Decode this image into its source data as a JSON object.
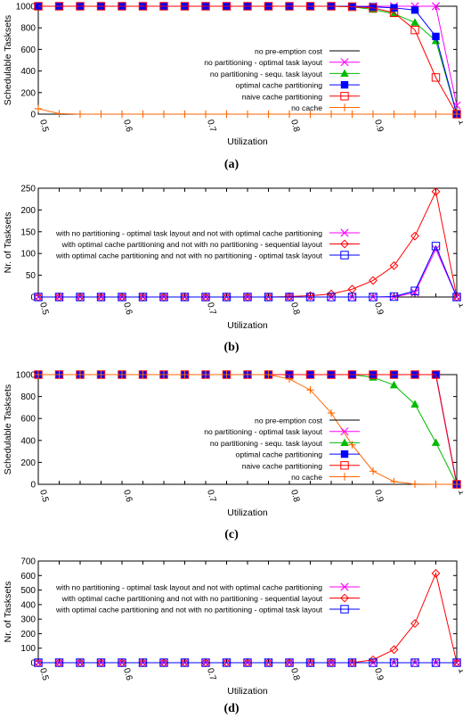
{
  "chart_data": [
    {
      "type": "line",
      "caption": "(a)",
      "xlabel": "Utilization",
      "ylabel": "Schedulable Tasksets",
      "xlim": [
        0.5,
        1.0
      ],
      "ylim": [
        0,
        1000
      ],
      "xticks": [
        "0.5",
        "0.6",
        "0.7",
        "0.8",
        "0.9",
        "1"
      ],
      "yticks": [
        "0",
        "200",
        "400",
        "600",
        "800",
        "1000"
      ],
      "grid": false,
      "legend": "center-right",
      "x": [
        0.5,
        0.525,
        0.55,
        0.575,
        0.6,
        0.625,
        0.65,
        0.675,
        0.7,
        0.725,
        0.75,
        0.775,
        0.8,
        0.825,
        0.85,
        0.875,
        0.9,
        0.925,
        0.95,
        0.975,
        1.0
      ],
      "series": [
        {
          "name": "no pre-emption cost",
          "color": "#000000",
          "marker": "none",
          "values": [
            1000,
            1000,
            1000,
            1000,
            1000,
            1000,
            1000,
            1000,
            1000,
            1000,
            1000,
            1000,
            1000,
            1000,
            1000,
            1000,
            1000,
            1000,
            1000,
            1000,
            1000
          ]
        },
        {
          "name": "no partitioning - optimal task layout",
          "color": "#ff00ff",
          "marker": "x",
          "values": [
            1000,
            1000,
            1000,
            1000,
            1000,
            1000,
            1000,
            1000,
            1000,
            1000,
            1000,
            1000,
            1000,
            1000,
            1000,
            1000,
            1000,
            1000,
            1000,
            1000,
            80
          ]
        },
        {
          "name": "no partitioning - sequ. task layout",
          "color": "#00bb00",
          "marker": "triangle",
          "values": [
            1000,
            1000,
            1000,
            1000,
            1000,
            1000,
            1000,
            1000,
            1000,
            1000,
            1000,
            1000,
            1000,
            1000,
            1000,
            995,
            970,
            930,
            850,
            680,
            0
          ]
        },
        {
          "name": "optimal cache partitioning",
          "color": "#0000ff",
          "marker": "square-filled",
          "values": [
            1000,
            1000,
            1000,
            1000,
            1000,
            1000,
            1000,
            1000,
            1000,
            1000,
            1000,
            1000,
            1000,
            1000,
            1000,
            1000,
            995,
            985,
            965,
            720,
            0
          ]
        },
        {
          "name": "naive cache partitioning",
          "color": "#ff0000",
          "marker": "square-open",
          "values": [
            1000,
            1000,
            1000,
            1000,
            1000,
            1000,
            1000,
            1000,
            1000,
            1000,
            1000,
            1000,
            1000,
            1000,
            1000,
            995,
            985,
            940,
            780,
            340,
            0
          ]
        },
        {
          "name": "no cache",
          "color": "#ff6600",
          "marker": "plus",
          "values": [
            50,
            5,
            0,
            0,
            0,
            0,
            0,
            0,
            0,
            0,
            0,
            0,
            0,
            0,
            0,
            0,
            0,
            0,
            0,
            0,
            0
          ]
        }
      ]
    },
    {
      "type": "line",
      "caption": "(b)",
      "xlabel": "Utilization",
      "ylabel": "Nr. of Tasksets",
      "xlim": [
        0.5,
        1.0
      ],
      "ylim": [
        0,
        250
      ],
      "xticks": [
        "0.5",
        "0.6",
        "0.7",
        "0.8",
        "0.9",
        "1"
      ],
      "yticks": [
        "0",
        "50",
        "100",
        "150",
        "200",
        "250"
      ],
      "grid": false,
      "legend": "center-right",
      "x": [
        0.5,
        0.525,
        0.55,
        0.575,
        0.6,
        0.625,
        0.65,
        0.675,
        0.7,
        0.725,
        0.75,
        0.775,
        0.8,
        0.825,
        0.85,
        0.875,
        0.9,
        0.925,
        0.95,
        0.975,
        1.0
      ],
      "series": [
        {
          "name": "with no partitioning - optimal task layout and not with optimal cache partitioning",
          "color": "#ff00ff",
          "marker": "x",
          "values": [
            0,
            0,
            0,
            0,
            0,
            0,
            0,
            0,
            0,
            0,
            0,
            0,
            0,
            0,
            0,
            0,
            0,
            0,
            10,
            110,
            0
          ]
        },
        {
          "name": "with optimal cache partitioning and not with no partitioning - sequential layout",
          "color": "#ff0000",
          "marker": "diamond",
          "values": [
            0,
            0,
            0,
            0,
            0,
            0,
            0,
            0,
            0,
            0,
            0,
            0,
            1,
            3,
            7,
            18,
            38,
            72,
            140,
            242,
            0
          ]
        },
        {
          "name": "with optimal cache partitioning and not with no partitioning - optimal task layout",
          "color": "#0000ff",
          "marker": "square-open",
          "values": [
            0,
            0,
            0,
            0,
            0,
            0,
            0,
            0,
            0,
            0,
            0,
            0,
            0,
            0,
            0,
            0,
            0,
            1,
            14,
            117,
            0
          ]
        }
      ]
    },
    {
      "type": "line",
      "caption": "(c)",
      "xlabel": "Utilization",
      "ylabel": "Schedulable Tasksets",
      "xlim": [
        0.5,
        1.0
      ],
      "ylim": [
        0,
        1000
      ],
      "xticks": [
        "0.5",
        "0.6",
        "0.7",
        "0.8",
        "0.9",
        "1"
      ],
      "yticks": [
        "0",
        "200",
        "400",
        "600",
        "800",
        "1000"
      ],
      "grid": false,
      "legend": "center-right",
      "x": [
        0.5,
        0.525,
        0.55,
        0.575,
        0.6,
        0.625,
        0.65,
        0.675,
        0.7,
        0.725,
        0.75,
        0.775,
        0.8,
        0.825,
        0.85,
        0.875,
        0.9,
        0.925,
        0.95,
        0.975,
        1.0
      ],
      "series": [
        {
          "name": "no pre-emption cost",
          "color": "#000000",
          "marker": "none",
          "values": [
            1000,
            1000,
            1000,
            1000,
            1000,
            1000,
            1000,
            1000,
            1000,
            1000,
            1000,
            1000,
            1000,
            1000,
            1000,
            1000,
            1000,
            1000,
            1000,
            1000,
            1000
          ]
        },
        {
          "name": "no partitioning - optimal task layout",
          "color": "#ff00ff",
          "marker": "x",
          "values": [
            1000,
            1000,
            1000,
            1000,
            1000,
            1000,
            1000,
            1000,
            1000,
            1000,
            1000,
            1000,
            1000,
            1000,
            1000,
            1000,
            1000,
            1000,
            1000,
            1000,
            0
          ]
        },
        {
          "name": "no partitioning - sequ. task layout",
          "color": "#00bb00",
          "marker": "triangle",
          "values": [
            1000,
            1000,
            1000,
            1000,
            1000,
            1000,
            1000,
            1000,
            1000,
            1000,
            1000,
            1000,
            1000,
            1000,
            1000,
            1000,
            975,
            905,
            730,
            380,
            0
          ]
        },
        {
          "name": "optimal cache partitioning",
          "color": "#0000ff",
          "marker": "square-filled",
          "values": [
            1000,
            1000,
            1000,
            1000,
            1000,
            1000,
            1000,
            1000,
            1000,
            1000,
            1000,
            1000,
            1000,
            1000,
            1000,
            1000,
            1000,
            1000,
            1000,
            1000,
            0
          ]
        },
        {
          "name": "naive cache partitioning",
          "color": "#ff0000",
          "marker": "square-open",
          "values": [
            1000,
            1000,
            1000,
            1000,
            1000,
            1000,
            1000,
            1000,
            1000,
            1000,
            1000,
            1000,
            1000,
            1000,
            1000,
            1000,
            1000,
            1000,
            1000,
            1000,
            0
          ]
        },
        {
          "name": "no cache",
          "color": "#ff6600",
          "marker": "plus",
          "values": [
            1000,
            1000,
            1000,
            1000,
            1000,
            1000,
            1000,
            1000,
            1000,
            1000,
            1000,
            1000,
            960,
            860,
            650,
            360,
            120,
            25,
            2,
            0,
            0
          ]
        }
      ]
    },
    {
      "type": "line",
      "caption": "(d)",
      "xlabel": "Utilization",
      "ylabel": "Nr. of Tasksets",
      "xlim": [
        0.5,
        1.0
      ],
      "ylim": [
        0,
        700
      ],
      "xticks": [
        "0.5",
        "0.6",
        "0.7",
        "0.8",
        "0.9",
        "1"
      ],
      "yticks": [
        "0",
        "100",
        "200",
        "300",
        "400",
        "500",
        "600",
        "700"
      ],
      "grid": false,
      "legend": "top-right",
      "x": [
        0.5,
        0.525,
        0.55,
        0.575,
        0.6,
        0.625,
        0.65,
        0.675,
        0.7,
        0.725,
        0.75,
        0.775,
        0.8,
        0.825,
        0.85,
        0.875,
        0.9,
        0.925,
        0.95,
        0.975,
        1.0
      ],
      "series": [
        {
          "name": "with no partitioning - optimal task layout and not with optimal cache partitioning",
          "color": "#ff00ff",
          "marker": "x",
          "values": [
            0,
            0,
            0,
            0,
            0,
            0,
            0,
            0,
            0,
            0,
            0,
            0,
            0,
            0,
            0,
            0,
            0,
            0,
            0,
            0,
            0
          ]
        },
        {
          "name": "with optimal cache partitioning and not with no partitioning - sequential layout",
          "color": "#ff0000",
          "marker": "diamond",
          "values": [
            0,
            0,
            0,
            0,
            0,
            0,
            0,
            0,
            0,
            0,
            0,
            0,
            0,
            0,
            0,
            0,
            20,
            90,
            270,
            615,
            0
          ]
        },
        {
          "name": "with optimal cache partitioning and not with no partitioning - optimal task layout",
          "color": "#0000ff",
          "marker": "square-open",
          "values": [
            0,
            0,
            0,
            0,
            0,
            0,
            0,
            0,
            0,
            0,
            0,
            0,
            0,
            0,
            0,
            0,
            0,
            0,
            0,
            0,
            0
          ]
        }
      ]
    }
  ]
}
